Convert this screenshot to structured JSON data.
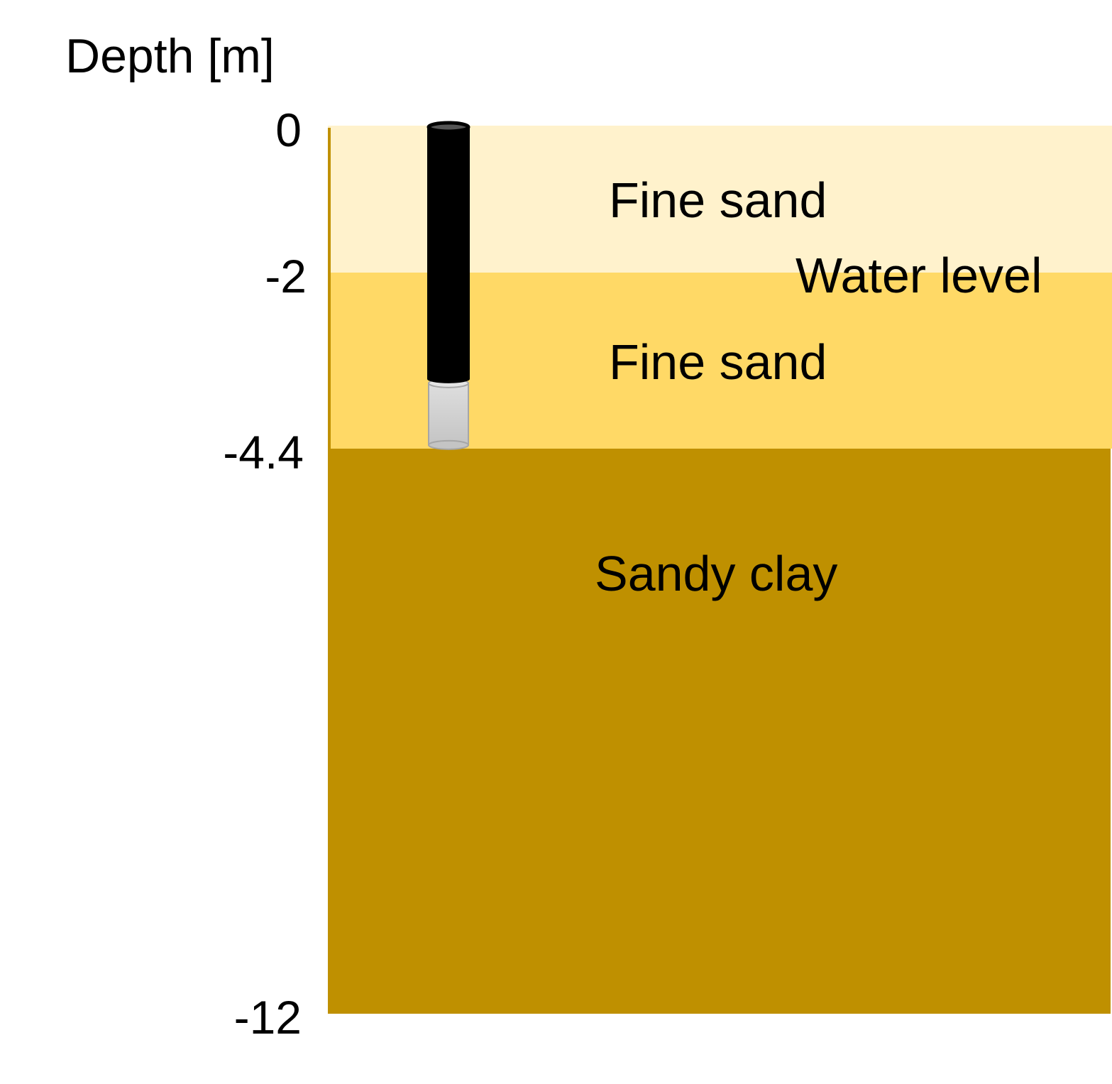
{
  "axis": {
    "title": "Depth [m]",
    "ticks": [
      {
        "value": 0,
        "label": "0"
      },
      {
        "value": -2,
        "label": "-2"
      },
      {
        "value": -4.4,
        "label": "-4.4"
      },
      {
        "value": -12,
        "label": "-12"
      }
    ]
  },
  "layers": [
    {
      "name": "Fine sand",
      "top": 0,
      "bottom": -2,
      "color": "#FFF2CC"
    },
    {
      "name": "Fine sand",
      "top": -2,
      "bottom": -4.4,
      "color": "#FFD966"
    },
    {
      "name": "Sandy clay",
      "top": -4.4,
      "bottom": -12,
      "color": "#BF9000"
    }
  ],
  "water_level": {
    "label": "Water level",
    "depth": -2,
    "color": "#2F5597"
  },
  "well": {
    "casing_top": 0,
    "casing_bottom": -3.45,
    "screen_bottom": -4.35,
    "casing_color": "#000000",
    "screen_color": "#CCCCCC"
  }
}
